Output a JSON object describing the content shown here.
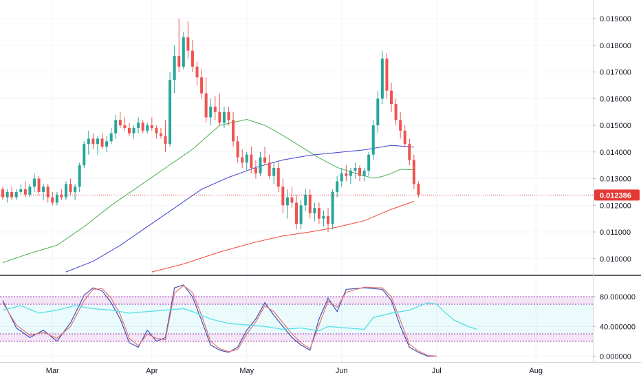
{
  "chart_data": [
    {
      "type": "candlestick",
      "title": "",
      "y_axis_side": "right",
      "ylim": [
        0.0094,
        0.0197
      ],
      "y_ticks": [
        "0.019000",
        "0.018000",
        "0.017000",
        "0.016000",
        "0.015000",
        "0.014000",
        "0.013000",
        "0.012000",
        "0.011000",
        "0.010000"
      ],
      "last_price_label": "0.012386",
      "last_price": 0.012386,
      "colors": {
        "up": "#26a69a",
        "down": "#ef5350",
        "ma_fast": "#4caf50",
        "ma_mid": "#3f3fd1",
        "ma_slow": "#f44336",
        "last_line": "#e53935"
      },
      "candles": [
        [
          0.0126,
          0.0127,
          0.0122,
          0.0123
        ],
        [
          0.0123,
          0.0126,
          0.0121,
          0.0125
        ],
        [
          0.0125,
          0.0127,
          0.0122,
          0.0123
        ],
        [
          0.0123,
          0.0126,
          0.0122,
          0.0125
        ],
        [
          0.0125,
          0.0128,
          0.0124,
          0.0126
        ],
        [
          0.0126,
          0.0129,
          0.0123,
          0.0124
        ],
        [
          0.0124,
          0.0128,
          0.0123,
          0.0127
        ],
        [
          0.0127,
          0.0132,
          0.0125,
          0.013
        ],
        [
          0.013,
          0.0131,
          0.0124,
          0.0125
        ],
        [
          0.0125,
          0.0128,
          0.0122,
          0.0127
        ],
        [
          0.0127,
          0.0128,
          0.0121,
          0.0123
        ],
        [
          0.0123,
          0.0125,
          0.012,
          0.0121
        ],
        [
          0.0121,
          0.0125,
          0.012,
          0.0124
        ],
        [
          0.0124,
          0.0126,
          0.0122,
          0.0123
        ],
        [
          0.0123,
          0.0129,
          0.0122,
          0.0128
        ],
        [
          0.0128,
          0.013,
          0.0124,
          0.0125
        ],
        [
          0.0125,
          0.0128,
          0.0122,
          0.0127
        ],
        [
          0.0127,
          0.0136,
          0.0125,
          0.0135
        ],
        [
          0.0135,
          0.0144,
          0.0134,
          0.0143
        ],
        [
          0.0143,
          0.0148,
          0.0139,
          0.0145
        ],
        [
          0.0145,
          0.0147,
          0.0141,
          0.0143
        ],
        [
          0.0143,
          0.0146,
          0.0139,
          0.0145
        ],
        [
          0.0145,
          0.0147,
          0.0141,
          0.0142
        ],
        [
          0.0142,
          0.0146,
          0.014,
          0.0144
        ],
        [
          0.0144,
          0.0149,
          0.0143,
          0.0147
        ],
        [
          0.0147,
          0.0154,
          0.0145,
          0.0152
        ],
        [
          0.0152,
          0.0155,
          0.0149,
          0.015
        ],
        [
          0.015,
          0.0153,
          0.0148,
          0.0149
        ],
        [
          0.0149,
          0.0151,
          0.0146,
          0.0147
        ],
        [
          0.0147,
          0.015,
          0.0145,
          0.0149
        ],
        [
          0.0149,
          0.0153,
          0.0147,
          0.0151
        ],
        [
          0.0151,
          0.0152,
          0.0147,
          0.0148
        ],
        [
          0.0148,
          0.0151,
          0.0147,
          0.015
        ],
        [
          0.015,
          0.0153,
          0.0148,
          0.0149
        ],
        [
          0.0149,
          0.015,
          0.0145,
          0.0147
        ],
        [
          0.0147,
          0.0149,
          0.0145,
          0.0146
        ],
        [
          0.0146,
          0.0152,
          0.014,
          0.0143
        ],
        [
          0.0143,
          0.017,
          0.0142,
          0.0167
        ],
        [
          0.0167,
          0.018,
          0.0162,
          0.0176
        ],
        [
          0.0176,
          0.019,
          0.017,
          0.0172
        ],
        [
          0.0172,
          0.0185,
          0.0171,
          0.0183
        ],
        [
          0.0183,
          0.0189,
          0.0175,
          0.0178
        ],
        [
          0.0178,
          0.0182,
          0.017,
          0.0172
        ],
        [
          0.0172,
          0.0174,
          0.0165,
          0.0168
        ],
        [
          0.0168,
          0.0171,
          0.016,
          0.0162
        ],
        [
          0.0162,
          0.0168,
          0.0151,
          0.0153
        ],
        [
          0.0153,
          0.016,
          0.015,
          0.0157
        ],
        [
          0.0157,
          0.0161,
          0.0152,
          0.0155
        ],
        [
          0.0155,
          0.0162,
          0.015,
          0.0151
        ],
        [
          0.0151,
          0.0157,
          0.0149,
          0.0155
        ],
        [
          0.0155,
          0.0157,
          0.015,
          0.0152
        ],
        [
          0.0152,
          0.0155,
          0.0142,
          0.0144
        ],
        [
          0.0144,
          0.0146,
          0.0136,
          0.0138
        ],
        [
          0.0138,
          0.0141,
          0.0134,
          0.0136
        ],
        [
          0.0136,
          0.014,
          0.0133,
          0.0139
        ],
        [
          0.0139,
          0.0142,
          0.0132,
          0.0134
        ],
        [
          0.0134,
          0.0137,
          0.013,
          0.0132
        ],
        [
          0.0132,
          0.014,
          0.0131,
          0.0138
        ],
        [
          0.0138,
          0.0142,
          0.0135,
          0.0136
        ],
        [
          0.0136,
          0.0139,
          0.013,
          0.0131
        ],
        [
          0.0131,
          0.0136,
          0.0128,
          0.0134
        ],
        [
          0.0134,
          0.0136,
          0.0125,
          0.0127
        ],
        [
          0.0127,
          0.013,
          0.0117,
          0.012
        ],
        [
          0.012,
          0.0126,
          0.0115,
          0.0123
        ],
        [
          0.0123,
          0.0127,
          0.0119,
          0.0121
        ],
        [
          0.0121,
          0.0124,
          0.0111,
          0.0113
        ],
        [
          0.0113,
          0.0122,
          0.0111,
          0.012
        ],
        [
          0.012,
          0.0126,
          0.0118,
          0.0124
        ],
        [
          0.0124,
          0.0126,
          0.0115,
          0.0117
        ],
        [
          0.0117,
          0.0121,
          0.0114,
          0.0119
        ],
        [
          0.0119,
          0.0121,
          0.0113,
          0.0115
        ],
        [
          0.0115,
          0.0118,
          0.0112,
          0.0116
        ],
        [
          0.0116,
          0.0119,
          0.011,
          0.0113
        ],
        [
          0.0113,
          0.0126,
          0.0111,
          0.0125
        ],
        [
          0.0125,
          0.0131,
          0.0123,
          0.0129
        ],
        [
          0.0129,
          0.0134,
          0.0127,
          0.0132
        ],
        [
          0.0132,
          0.0135,
          0.0129,
          0.0131
        ],
        [
          0.0131,
          0.0134,
          0.0128,
          0.0133
        ],
        [
          0.0133,
          0.0136,
          0.013,
          0.0134
        ],
        [
          0.0134,
          0.0135,
          0.0129,
          0.0131
        ],
        [
          0.0131,
          0.0134,
          0.0129,
          0.0133
        ],
        [
          0.0133,
          0.014,
          0.0131,
          0.0139
        ],
        [
          0.0139,
          0.0152,
          0.0137,
          0.015
        ],
        [
          0.015,
          0.0163,
          0.0147,
          0.016
        ],
        [
          0.016,
          0.0178,
          0.0158,
          0.0175
        ],
        [
          0.0175,
          0.0177,
          0.016,
          0.0163
        ],
        [
          0.0163,
          0.0166,
          0.0155,
          0.0158
        ],
        [
          0.0158,
          0.016,
          0.015,
          0.0152
        ],
        [
          0.0152,
          0.0155,
          0.0145,
          0.0148
        ],
        [
          0.0148,
          0.015,
          0.0142,
          0.0143
        ],
        [
          0.0143,
          0.0145,
          0.0135,
          0.0137
        ],
        [
          0.0137,
          0.0139,
          0.0126,
          0.0128
        ],
        [
          0.0128,
          0.0129,
          0.0123,
          0.0124
        ]
      ],
      "ma_fast": [
        [
          0,
          0.00985
        ],
        [
          6,
          0.0102
        ],
        [
          12,
          0.0105
        ],
        [
          18,
          0.0112
        ],
        [
          24,
          0.012
        ],
        [
          30,
          0.0127
        ],
        [
          36,
          0.0134
        ],
        [
          42,
          0.0141
        ],
        [
          48,
          0.015
        ],
        [
          54,
          0.01522
        ],
        [
          58,
          0.015
        ],
        [
          62,
          0.01462
        ],
        [
          66,
          0.0142
        ],
        [
          70,
          0.01378
        ],
        [
          74,
          0.01342
        ],
        [
          78,
          0.0132
        ],
        [
          82,
          0.01302
        ],
        [
          84,
          0.01308
        ],
        [
          86,
          0.0132
        ],
        [
          88,
          0.01335
        ],
        [
          91,
          0.01333
        ]
      ],
      "ma_mid": [
        [
          14,
          0.0095
        ],
        [
          20,
          0.0099
        ],
        [
          26,
          0.0105
        ],
        [
          32,
          0.0112
        ],
        [
          38,
          0.0119
        ],
        [
          44,
          0.0126
        ],
        [
          50,
          0.01305
        ],
        [
          56,
          0.01342
        ],
        [
          62,
          0.0137
        ],
        [
          68,
          0.01388
        ],
        [
          74,
          0.01398
        ],
        [
          80,
          0.01408
        ],
        [
          86,
          0.01425
        ],
        [
          91,
          0.01418
        ]
      ],
      "ma_slow": [
        [
          33,
          0.0095
        ],
        [
          40,
          0.0098
        ],
        [
          48,
          0.01025
        ],
        [
          56,
          0.01062
        ],
        [
          62,
          0.01085
        ],
        [
          68,
          0.011
        ],
        [
          74,
          0.01118
        ],
        [
          80,
          0.01142
        ],
        [
          86,
          0.01185
        ],
        [
          91,
          0.01215
        ]
      ]
    },
    {
      "type": "line",
      "indicator": "stoch-rsi",
      "ylim": [
        -8,
        108
      ],
      "y_ticks": [
        "80.000000",
        "40.000000",
        "0.000000"
      ],
      "bands": [
        [
          70,
          80
        ],
        [
          20,
          30
        ]
      ],
      "series": [
        {
          "color": "#3f51b5",
          "points": [
            [
              0,
              75
            ],
            [
              3,
              38
            ],
            [
              6,
              25
            ],
            [
              9,
              35
            ],
            [
              12,
              20
            ],
            [
              15,
              45
            ],
            [
              18,
              82
            ],
            [
              20,
              92
            ],
            [
              22,
              88
            ],
            [
              24,
              72
            ],
            [
              26,
              50
            ],
            [
              28,
              18
            ],
            [
              30,
              12
            ],
            [
              32,
              35
            ],
            [
              34,
              20
            ],
            [
              36,
              25
            ],
            [
              38,
              92
            ],
            [
              40,
              96
            ],
            [
              42,
              80
            ],
            [
              44,
              48
            ],
            [
              46,
              15
            ],
            [
              48,
              8
            ],
            [
              50,
              5
            ],
            [
              52,
              12
            ],
            [
              54,
              35
            ],
            [
              56,
              50
            ],
            [
              58,
              72
            ],
            [
              60,
              55
            ],
            [
              62,
              40
            ],
            [
              64,
              25
            ],
            [
              66,
              15
            ],
            [
              68,
              8
            ],
            [
              70,
              50
            ],
            [
              72,
              78
            ],
            [
              74,
              60
            ],
            [
              76,
              90
            ],
            [
              80,
              92
            ],
            [
              84,
              90
            ],
            [
              86,
              75
            ],
            [
              88,
              40
            ],
            [
              90,
              12
            ],
            [
              92,
              5
            ],
            [
              94,
              0
            ],
            [
              96,
              0
            ]
          ]
        },
        {
          "color": "#e57373",
          "points": [
            [
              0,
              72
            ],
            [
              3,
              42
            ],
            [
              6,
              28
            ],
            [
              9,
              32
            ],
            [
              12,
              24
            ],
            [
              15,
              40
            ],
            [
              18,
              75
            ],
            [
              20,
              90
            ],
            [
              22,
              91
            ],
            [
              24,
              78
            ],
            [
              26,
              56
            ],
            [
              28,
              24
            ],
            [
              30,
              14
            ],
            [
              32,
              30
            ],
            [
              34,
              24
            ],
            [
              36,
              22
            ],
            [
              38,
              85
            ],
            [
              40,
              95
            ],
            [
              42,
              86
            ],
            [
              44,
              55
            ],
            [
              46,
              20
            ],
            [
              48,
              10
            ],
            [
              50,
              6
            ],
            [
              52,
              9
            ],
            [
              54,
              30
            ],
            [
              56,
              46
            ],
            [
              58,
              68
            ],
            [
              60,
              60
            ],
            [
              62,
              45
            ],
            [
              64,
              30
            ],
            [
              66,
              18
            ],
            [
              68,
              10
            ],
            [
              70,
              42
            ],
            [
              72,
              74
            ],
            [
              74,
              66
            ],
            [
              76,
              86
            ],
            [
              80,
              93
            ],
            [
              84,
              92
            ],
            [
              86,
              80
            ],
            [
              88,
              48
            ],
            [
              90,
              16
            ],
            [
              92,
              7
            ],
            [
              94,
              1
            ],
            [
              96,
              0
            ]
          ]
        },
        {
          "color": "#5ce1e6",
          "points": [
            [
              0,
              62
            ],
            [
              4,
              68
            ],
            [
              8,
              58
            ],
            [
              12,
              62
            ],
            [
              16,
              68
            ],
            [
              20,
              64
            ],
            [
              24,
              62
            ],
            [
              28,
              58
            ],
            [
              32,
              60
            ],
            [
              36,
              62
            ],
            [
              40,
              64
            ],
            [
              42,
              60
            ],
            [
              46,
              50
            ],
            [
              50,
              44
            ],
            [
              54,
              42
            ],
            [
              58,
              40
            ],
            [
              62,
              36
            ],
            [
              66,
              38
            ],
            [
              70,
              34
            ],
            [
              72,
              40
            ],
            [
              76,
              38
            ],
            [
              80,
              36
            ],
            [
              82,
              52
            ],
            [
              86,
              58
            ],
            [
              90,
              62
            ],
            [
              94,
              72
            ],
            [
              96,
              70
            ],
            [
              98,
              58
            ],
            [
              100,
              48
            ],
            [
              103,
              40
            ],
            [
              105,
              36
            ]
          ]
        }
      ]
    }
  ],
  "x_axis_labels": [
    "Mar",
    "Apr",
    "May",
    "Jun",
    "Jul",
    "Aug"
  ]
}
